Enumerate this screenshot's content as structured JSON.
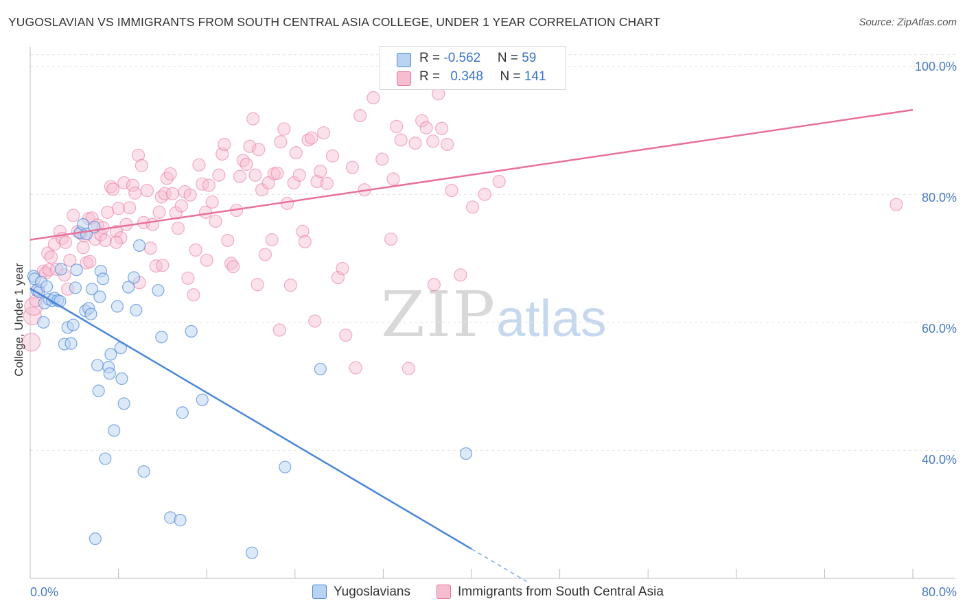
{
  "title": "YUGOSLAVIAN VS IMMIGRANTS FROM SOUTH CENTRAL ASIA COLLEGE, UNDER 1 YEAR CORRELATION CHART",
  "source": "Source: ZipAtlas.com",
  "watermark": {
    "zip": "ZIP",
    "atlas": "atlas"
  },
  "colors": {
    "blue": "#4a86d8",
    "blue_fill": "#b9d3f3",
    "pink": "#e8709a",
    "pink_fill": "#f6bcd0",
    "axis_label": "#4a7cc4"
  },
  "legend": {
    "rows": [
      {
        "r_label": "R = ",
        "r_value": "-0.562",
        "n_label": "N = ",
        "n_value": "59"
      },
      {
        "r_label": "R = ",
        "r_value": "0.348",
        "n_label": "N = ",
        "n_value": "141"
      }
    ]
  },
  "bottom_legend": [
    "Yugoslavians",
    "Immigrants from South Central Asia"
  ],
  "chart_data": {
    "type": "scatter",
    "title": "YUGOSLAVIAN VS IMMIGRANTS FROM SOUTH CENTRAL ASIA COLLEGE, UNDER 1 YEAR CORRELATION CHART",
    "xlabel": "",
    "ylabel": "College, Under 1 year",
    "xlim": [
      0,
      80
    ],
    "ylim": [
      20,
      102
    ],
    "x_ticks_labels": [
      "0.0%",
      "80.0%"
    ],
    "y_ticks": [
      40,
      60,
      80,
      100
    ],
    "y_ticks_labels": [
      "40.0%",
      "60.0%",
      "80.0%",
      "100.0%"
    ],
    "grid": true,
    "legend_position": "top-center",
    "series": [
      {
        "name": "Yugoslavians",
        "R": -0.562,
        "N": 59,
        "trend": {
          "x0": 0,
          "y0": 65.3,
          "x1": 40,
          "y1": 24.6,
          "dashed_to_x": 45
        },
        "points": [
          [
            0.3,
            67.2
          ],
          [
            0.4,
            66.8
          ],
          [
            0.6,
            65.0
          ],
          [
            0.8,
            64.8
          ],
          [
            1.0,
            66.3
          ],
          [
            1.2,
            60.0
          ],
          [
            1.3,
            63.0
          ],
          [
            1.5,
            65.6
          ],
          [
            1.7,
            63.6
          ],
          [
            2.0,
            63.4
          ],
          [
            2.2,
            63.8
          ],
          [
            2.5,
            63.4
          ],
          [
            2.8,
            68.3
          ],
          [
            3.1,
            56.6
          ],
          [
            3.4,
            59.2
          ],
          [
            3.7,
            56.7
          ],
          [
            3.9,
            59.6
          ],
          [
            4.1,
            65.4
          ],
          [
            4.2,
            68.2
          ],
          [
            4.5,
            74.0
          ],
          [
            4.8,
            75.3
          ],
          [
            5.0,
            61.8
          ],
          [
            5.1,
            73.8
          ],
          [
            5.3,
            62.2
          ],
          [
            5.5,
            61.3
          ],
          [
            5.6,
            65.2
          ],
          [
            5.8,
            74.9
          ],
          [
            6.1,
            53.3
          ],
          [
            6.2,
            49.3
          ],
          [
            6.3,
            64.0
          ],
          [
            6.4,
            68.0
          ],
          [
            6.6,
            66.8
          ],
          [
            6.8,
            38.7
          ],
          [
            7.1,
            53.0
          ],
          [
            7.2,
            52.0
          ],
          [
            7.3,
            55.0
          ],
          [
            7.6,
            43.1
          ],
          [
            7.9,
            62.5
          ],
          [
            8.2,
            56.0
          ],
          [
            8.3,
            51.2
          ],
          [
            8.5,
            47.3
          ],
          [
            8.9,
            65.5
          ],
          [
            9.4,
            67.0
          ],
          [
            9.6,
            61.9
          ],
          [
            9.9,
            72.0
          ],
          [
            10.3,
            36.7
          ],
          [
            11.6,
            65.0
          ],
          [
            11.9,
            57.7
          ],
          [
            12.7,
            29.5
          ],
          [
            13.6,
            29.1
          ],
          [
            13.8,
            45.9
          ],
          [
            14.6,
            58.6
          ],
          [
            15.6,
            47.9
          ],
          [
            20.1,
            24.0
          ],
          [
            23.1,
            37.4
          ],
          [
            26.3,
            52.7
          ],
          [
            39.5,
            39.5
          ],
          [
            5.9,
            26.2
          ],
          [
            2.7,
            63.3
          ]
        ]
      },
      {
        "name": "Immigrants from South Central Asia",
        "R": 0.348,
        "N": 141,
        "trend": {
          "x0": 0,
          "y0": 72.9,
          "x1": 80,
          "y1": 93.2
        },
        "points": [
          [
            0.1,
            56.9
          ],
          [
            0.2,
            61.0
          ],
          [
            0.3,
            62.5
          ],
          [
            0.5,
            63.4
          ],
          [
            0.7,
            65.1
          ],
          [
            1.2,
            68.0
          ],
          [
            1.4,
            67.7
          ],
          [
            1.6,
            70.8
          ],
          [
            1.7,
            68.2
          ],
          [
            1.9,
            70.2
          ],
          [
            2.2,
            72.2
          ],
          [
            2.4,
            68.3
          ],
          [
            2.7,
            74.2
          ],
          [
            2.9,
            73.1
          ],
          [
            3.2,
            72.5
          ],
          [
            3.4,
            65.2
          ],
          [
            3.6,
            69.7
          ],
          [
            3.9,
            76.7
          ],
          [
            4.3,
            74.2
          ],
          [
            4.6,
            73.9
          ],
          [
            4.9,
            73.5
          ],
          [
            5.1,
            69.3
          ],
          [
            5.3,
            76.2
          ],
          [
            5.6,
            76.3
          ],
          [
            5.9,
            73.0
          ],
          [
            6.1,
            75.2
          ],
          [
            6.4,
            73.7
          ],
          [
            6.6,
            74.8
          ],
          [
            6.8,
            72.8
          ],
          [
            7.0,
            77.2
          ],
          [
            7.3,
            81.2
          ],
          [
            7.5,
            80.8
          ],
          [
            7.8,
            74.2
          ],
          [
            8.0,
            77.8
          ],
          [
            8.2,
            73.2
          ],
          [
            8.5,
            81.8
          ],
          [
            8.7,
            75.3
          ],
          [
            9.0,
            77.9
          ],
          [
            9.3,
            81.4
          ],
          [
            9.5,
            80.2
          ],
          [
            9.8,
            86.1
          ],
          [
            10.1,
            84.5
          ],
          [
            10.3,
            75.6
          ],
          [
            10.6,
            80.6
          ],
          [
            10.9,
            71.6
          ],
          [
            11.1,
            75.3
          ],
          [
            11.4,
            68.8
          ],
          [
            11.7,
            77.2
          ],
          [
            11.9,
            79.6
          ],
          [
            12.2,
            80.1
          ],
          [
            12.4,
            82.5
          ],
          [
            12.7,
            83.2
          ],
          [
            12.9,
            80.1
          ],
          [
            13.2,
            77.1
          ],
          [
            13.4,
            74.7
          ],
          [
            13.7,
            78.2
          ],
          [
            14.0,
            80.4
          ],
          [
            14.3,
            66.9
          ],
          [
            14.5,
            79.9
          ],
          [
            14.8,
            64.3
          ],
          [
            15.0,
            71.3
          ],
          [
            15.3,
            84.6
          ],
          [
            15.6,
            81.6
          ],
          [
            15.9,
            77.2
          ],
          [
            16.2,
            81.4
          ],
          [
            16.5,
            78.8
          ],
          [
            16.8,
            75.8
          ],
          [
            17.1,
            83.0
          ],
          [
            17.4,
            86.3
          ],
          [
            17.6,
            87.8
          ],
          [
            17.9,
            72.8
          ],
          [
            18.2,
            69.2
          ],
          [
            18.4,
            68.7
          ],
          [
            18.7,
            77.5
          ],
          [
            19.0,
            82.8
          ],
          [
            19.3,
            85.3
          ],
          [
            19.6,
            84.7
          ],
          [
            19.9,
            87.5
          ],
          [
            20.2,
            91.8
          ],
          [
            20.4,
            83.0
          ],
          [
            20.7,
            87.0
          ],
          [
            21.0,
            80.7
          ],
          [
            21.3,
            70.6
          ],
          [
            21.6,
            81.8
          ],
          [
            21.9,
            72.9
          ],
          [
            22.1,
            83.2
          ],
          [
            22.4,
            83.3
          ],
          [
            22.7,
            88.2
          ],
          [
            23.0,
            90.2
          ],
          [
            23.3,
            78.6
          ],
          [
            23.6,
            65.8
          ],
          [
            23.9,
            81.8
          ],
          [
            24.1,
            86.5
          ],
          [
            24.4,
            83.0
          ],
          [
            24.7,
            74.2
          ],
          [
            24.9,
            72.6
          ],
          [
            25.2,
            88.5
          ],
          [
            25.5,
            88.8
          ],
          [
            25.8,
            60.2
          ],
          [
            26.0,
            82.0
          ],
          [
            26.3,
            83.6
          ],
          [
            26.6,
            89.6
          ],
          [
            26.9,
            81.7
          ],
          [
            27.4,
            86.0
          ],
          [
            27.9,
            67.0
          ],
          [
            28.3,
            68.4
          ],
          [
            28.6,
            58.0
          ],
          [
            29.2,
            84.2
          ],
          [
            29.5,
            52.9
          ],
          [
            29.9,
            92.3
          ],
          [
            30.3,
            80.7
          ],
          [
            31.1,
            95.1
          ],
          [
            31.9,
            85.5
          ],
          [
            32.7,
            73.0
          ],
          [
            33.2,
            90.6
          ],
          [
            33.6,
            88.5
          ],
          [
            34.3,
            52.8
          ],
          [
            34.9,
            88.0
          ],
          [
            35.5,
            91.5
          ],
          [
            35.9,
            90.4
          ],
          [
            36.5,
            88.3
          ],
          [
            37.0,
            95.7
          ],
          [
            37.3,
            90.3
          ],
          [
            37.8,
            87.8
          ],
          [
            38.2,
            80.6
          ],
          [
            39.0,
            67.4
          ],
          [
            40.1,
            78.0
          ],
          [
            41.2,
            80.0
          ],
          [
            42.5,
            82.0
          ],
          [
            20.6,
            65.9
          ],
          [
            22.6,
            58.8
          ],
          [
            32.9,
            82.4
          ],
          [
            36.6,
            65.9
          ],
          [
            16.0,
            69.7
          ],
          [
            12.0,
            68.9
          ],
          [
            7.8,
            72.5
          ],
          [
            9.9,
            66.2
          ],
          [
            3.1,
            67.4
          ],
          [
            4.8,
            71.7
          ],
          [
            5.4,
            69.5
          ],
          [
            78.5,
            78.4
          ]
        ]
      }
    ]
  }
}
